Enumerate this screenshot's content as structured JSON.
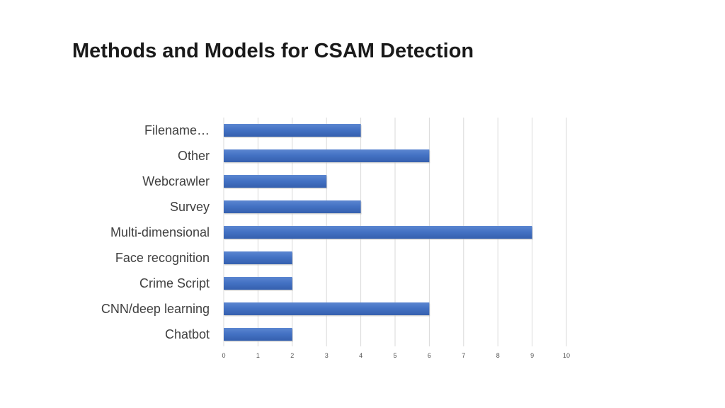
{
  "slide": {
    "title": "Methods and Models for CSAM Detection"
  },
  "chart_data": {
    "type": "bar",
    "orientation": "horizontal",
    "title": "",
    "xlabel": "",
    "ylabel": "",
    "categories": [
      "Filename…",
      "Other",
      "Webcrawler",
      "Survey",
      "Multi-dimensional",
      "Face recognition",
      "Crime Script",
      "CNN/deep learning",
      "Chatbot"
    ],
    "values": [
      4,
      6,
      3,
      4,
      9,
      2,
      2,
      6,
      2
    ],
    "xlim": [
      0,
      10
    ],
    "ticks": [
      "0",
      "1",
      "2",
      "3",
      "4",
      "5",
      "6",
      "7",
      "8",
      "9",
      "10"
    ],
    "grid": true,
    "legend": "none",
    "bar_color": "#4472C4"
  }
}
